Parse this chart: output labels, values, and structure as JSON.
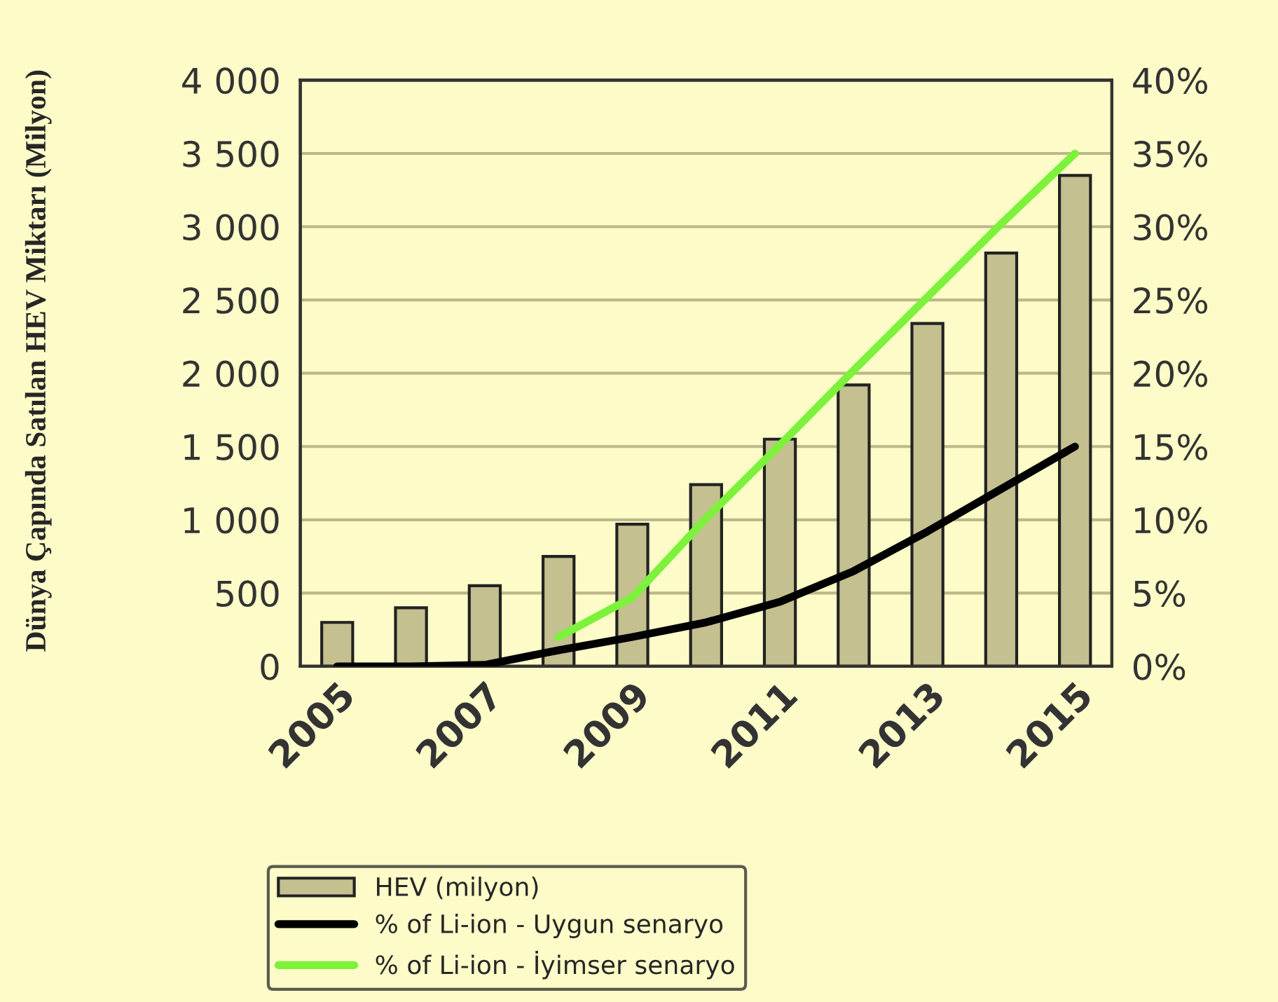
{
  "chart_data": {
    "type": "bar",
    "ylabel": "Dünya Çapında Satılan HEV Miktarı (Milyon)",
    "categories": [
      "2005",
      null,
      "2007",
      null,
      "2009",
      null,
      "2011",
      null,
      "2013",
      null,
      "2015"
    ],
    "series": [
      {
        "name": "HEV (milyon)",
        "color": "#c4c08f",
        "values": [
          300,
          400,
          550,
          750,
          970,
          1240,
          1550,
          1920,
          2340,
          2820,
          3350
        ]
      },
      {
        "name": "% of Li-ion - Uygun senaryo",
        "type": "line",
        "axis": "y2",
        "color": "#000000",
        "values": [
          0,
          0,
          0.1,
          1.1,
          2.0,
          3.0,
          4.4,
          6.5,
          9.2,
          12.1,
          15.0
        ]
      },
      {
        "name": "% of Li-ion - İyimser senaryo",
        "type": "line",
        "axis": "y2",
        "color": "#7cf23a",
        "values": [
          null,
          null,
          null,
          2.0,
          4.7,
          10.1,
          15.1,
          20.2,
          25.2,
          30.2,
          35.0
        ]
      }
    ],
    "ylim": [
      0,
      4000
    ],
    "yticks": [
      0,
      500,
      {
        "value": 1000,
        "label": "1 000"
      },
      {
        "value": 1500,
        "label": "1 500"
      },
      {
        "value": 2000,
        "label": "2 000"
      },
      {
        "value": 2500,
        "label": "2 500"
      },
      {
        "value": 3000,
        "label": "3 000"
      },
      {
        "value": 3500,
        "label": "3 500"
      },
      {
        "value": 4000,
        "label": "4 000"
      }
    ],
    "y2lim": [
      0,
      40
    ],
    "y2ticks": [
      {
        "value": 0,
        "label": "0%"
      },
      {
        "value": 5,
        "label": "5%"
      },
      {
        "value": 10,
        "label": "10%"
      },
      {
        "value": 15,
        "label": "15%"
      },
      {
        "value": 20,
        "label": "20%"
      },
      {
        "value": 25,
        "label": "25%"
      },
      {
        "value": 30,
        "label": "30%"
      },
      {
        "value": 35,
        "label": "35%"
      },
      {
        "value": 40,
        "label": "40%"
      }
    ],
    "grid": "y",
    "legend": "bottom",
    "line_style": "solid"
  }
}
